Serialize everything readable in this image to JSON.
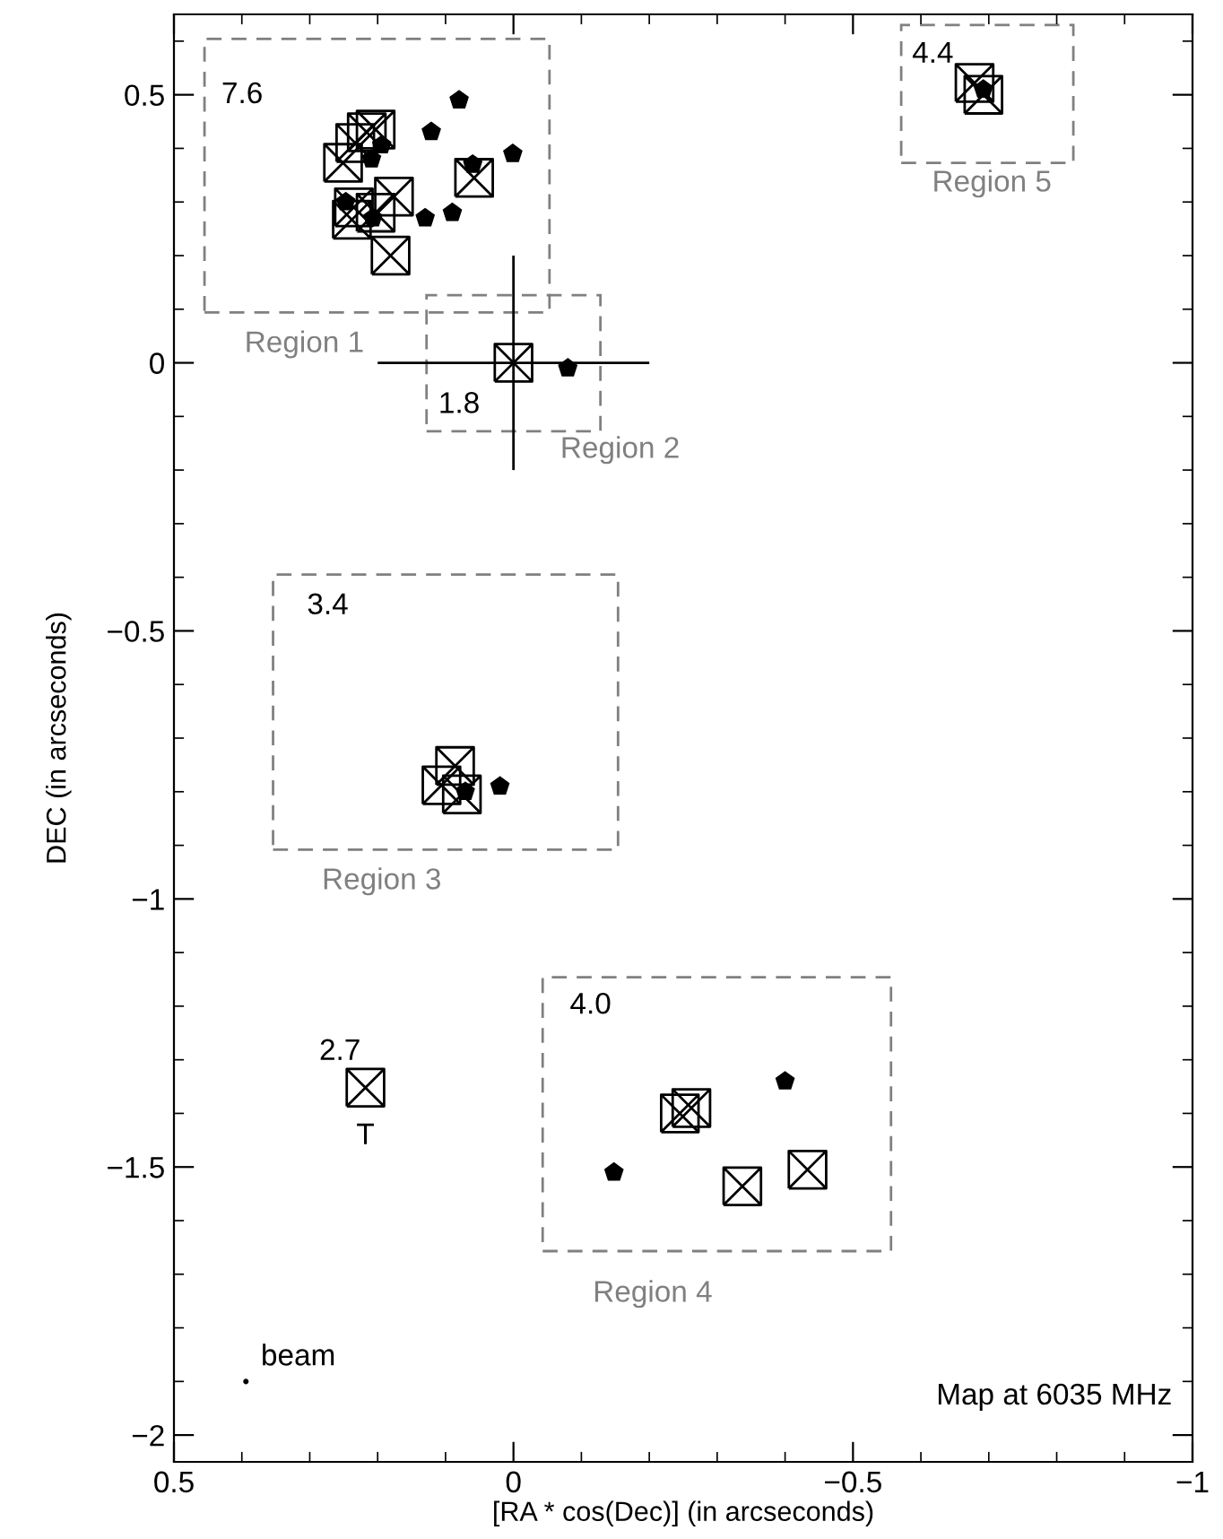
{
  "chart_data": {
    "type": "scatter",
    "xlabel": "[RA * cos(Dec)] (in arcseconds)",
    "ylabel": "DEC (in arcseconds)",
    "xlim": [
      0.5,
      -1
    ],
    "ylim": [
      -2.05,
      0.65
    ],
    "xticks": [
      0.5,
      0,
      -0.5,
      -1
    ],
    "yticks": [
      0.5,
      0,
      -0.5,
      -1,
      -1.5,
      -2
    ],
    "grid": false,
    "series": [
      {
        "marker": "square",
        "color": "#000000",
        "x": [
          0.058,
          0.181,
          0.251,
          0.216,
          0.233,
          0.203,
          0.176,
          0.235,
          0.238,
          0.203,
          0.0,
          -0.679,
          -0.692,
          0.086,
          0.106,
          0.076,
          -0.245,
          -0.262,
          -0.337,
          -0.433
        ],
        "values": [
          0.345,
          0.2,
          0.373,
          0.43,
          0.41,
          0.435,
          0.31,
          0.29,
          0.267,
          0.28,
          0.0,
          0.522,
          0.5,
          -0.752,
          -0.788,
          -0.805,
          -1.4,
          -1.39,
          -1.536,
          -1.505
        ],
        "errors": [
          null,
          null,
          null,
          null,
          null,
          null,
          null,
          null,
          null,
          null,
          0.2,
          null,
          null,
          null,
          null,
          null,
          null,
          null,
          null,
          null
        ],
        "xerrors": [
          null,
          null,
          null,
          null,
          null,
          null,
          null,
          null,
          null,
          null,
          0.2,
          null,
          null,
          null,
          null,
          null,
          null,
          null,
          null,
          null
        ]
      },
      {
        "color": "#000000",
        "x": [
          0.08,
          0.121,
          0.001,
          0.06,
          0.13,
          0.09,
          0.194,
          0.209,
          0.247,
          0.207,
          -0.08,
          -0.692,
          0.071,
          0.02,
          -0.148,
          -0.4
        ],
        "values": [
          0.49,
          0.431,
          0.39,
          0.37,
          0.27,
          0.28,
          0.406,
          0.38,
          0.3,
          0.27,
          -0.01,
          0.51,
          -0.8,
          -0.79,
          -1.51,
          -1.34
        ]
      },
      {
        "name": "T",
        "marker": "square",
        "color": "#000000",
        "x": [
          0.218
        ],
        "values": [
          -1.352
        ]
      },
      {
        "name": "beam",
        "marker": "circle",
        "color": "#000000",
        "x": [
          0.394
        ],
        "values": [
          -1.9
        ]
      }
    ],
    "annotations": [
      "7.6",
      "Region 1",
      "1.8",
      "Region 2",
      "3.4",
      "Region 3",
      "4.0",
      "Region 4",
      "4.4",
      "Region 5",
      "2.7",
      "Map at 6035 MHz"
    ]
  }
}
